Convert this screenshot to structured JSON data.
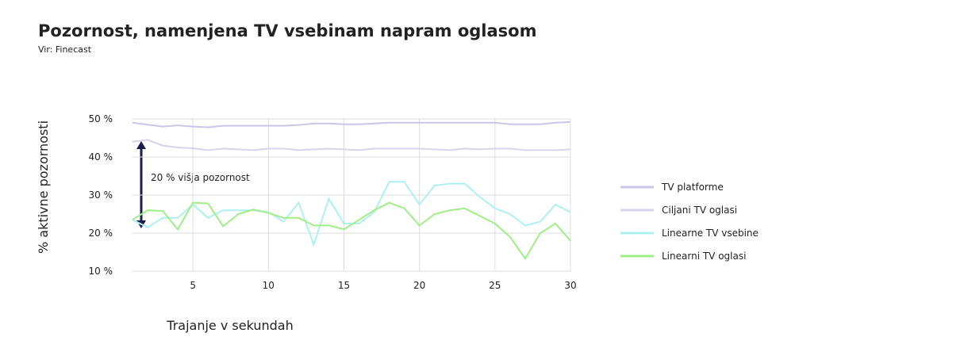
{
  "chart_data": {
    "type": "line",
    "title": "Pozornost, namenjena TV vsebinam napram oglasom",
    "subtitle": "Vir: Finecast",
    "x_label": "Trajanje v sekundah",
    "y_label": "% aktivne pozornosti",
    "annotation": "20 % višja pozornost",
    "x": [
      1,
      2,
      3,
      4,
      5,
      6,
      7,
      8,
      9,
      10,
      11,
      12,
      13,
      14,
      15,
      16,
      17,
      18,
      19,
      20,
      21,
      22,
      23,
      24,
      25,
      26,
      27,
      28,
      29,
      30
    ],
    "xlim": [
      1,
      30
    ],
    "xticks": [
      5,
      10,
      15,
      20,
      25,
      30
    ],
    "ylim": [
      10,
      50
    ],
    "yticks": [
      {
        "value": 10,
        "label": "10 %"
      },
      {
        "value": 20,
        "label": "20 %"
      },
      {
        "value": 30,
        "label": "30 %"
      },
      {
        "value": 40,
        "label": "40 %"
      },
      {
        "value": 50,
        "label": "50 %"
      }
    ],
    "grid": true,
    "legend": "right",
    "series": [
      {
        "name": "TV platforme",
        "color": "#c9c6ea",
        "values": [
          49,
          48.5,
          48,
          48.3,
          48,
          47.8,
          48.2,
          48.2,
          48.2,
          48.2,
          48.2,
          48.4,
          48.8,
          48.8,
          48.6,
          48.6,
          48.8,
          49,
          49,
          49,
          49,
          49,
          49,
          49,
          49,
          48.6,
          48.6,
          48.6,
          49,
          49.2
        ]
      },
      {
        "name": "Ciljani TV oglasi",
        "color": "#d6d3ef",
        "values": [
          44,
          44.5,
          43,
          42.5,
          42.3,
          41.8,
          42.2,
          42,
          41.8,
          42.2,
          42.2,
          41.8,
          42,
          42.2,
          42,
          41.8,
          42.2,
          42.2,
          42.2,
          42.2,
          42,
          41.8,
          42.2,
          42,
          42.2,
          42.2,
          41.8,
          41.8,
          41.8,
          42
        ]
      },
      {
        "name": "Linearne TV vsebine",
        "color": "#aef0f2",
        "values": [
          23.5,
          21.5,
          24,
          24,
          27.5,
          24,
          26,
          26,
          26,
          25.5,
          23,
          28,
          17,
          29,
          22.5,
          22.5,
          25.5,
          33.5,
          33.5,
          27.5,
          32.5,
          33,
          33,
          29.5,
          26.5,
          25,
          22,
          23,
          27.5,
          25.5
        ]
      },
      {
        "name": "Linearni TV oglasi",
        "color": "#9fef86",
        "values": [
          23.5,
          26,
          25.8,
          21,
          28,
          27.8,
          21.8,
          25,
          26.2,
          25.3,
          24,
          24,
          22,
          22,
          21,
          23.5,
          26,
          28,
          26.5,
          22,
          25,
          26,
          26.5,
          24.5,
          22.5,
          19,
          13.3,
          20,
          22.5,
          18
        ]
      }
    ]
  }
}
